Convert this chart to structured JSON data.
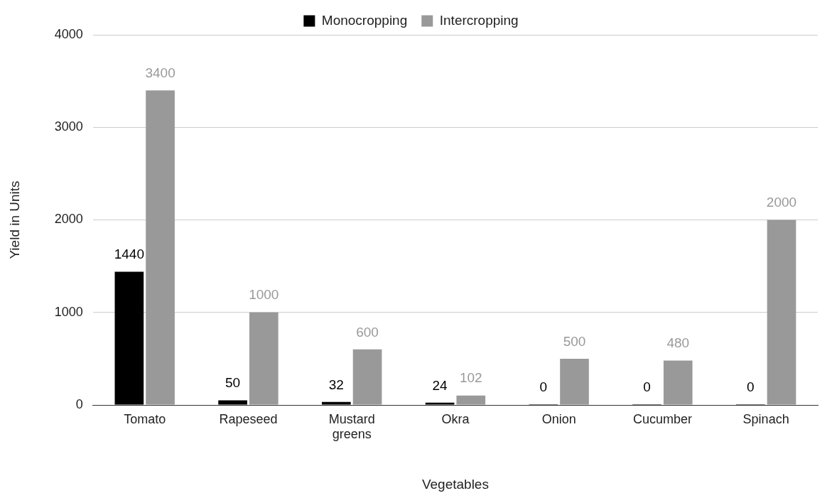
{
  "chart_data": {
    "type": "bar",
    "xlabel": "Vegetables",
    "ylabel": "Yield in Units",
    "categories": [
      "Tomato",
      "Rapeseed",
      "Mustard greens",
      "Okra",
      "Onion",
      "Cucumber",
      "Spinach"
    ],
    "series": [
      {
        "name": "Monocropping",
        "color": "#000000",
        "values": [
          1440,
          50,
          32,
          24,
          0,
          0,
          0
        ]
      },
      {
        "name": "Intercropping",
        "color": "#999999",
        "values": [
          3400,
          1000,
          600,
          102,
          500,
          480,
          2000
        ]
      }
    ],
    "ylim": [
      0,
      4000
    ],
    "yticks": [
      0,
      1000,
      2000,
      3000,
      4000
    ],
    "grid": "y",
    "legend": "top",
    "data_labels": true
  }
}
